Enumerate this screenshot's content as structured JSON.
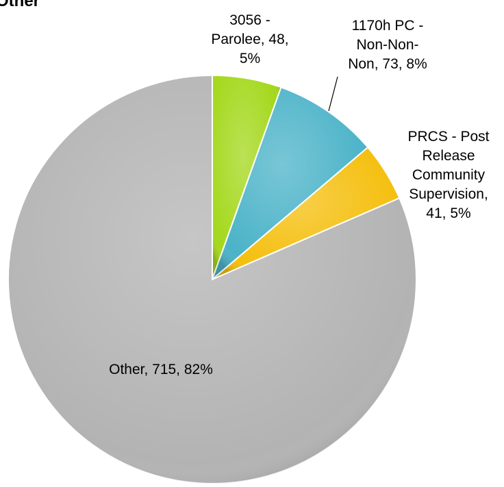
{
  "chart_data": {
    "type": "pie",
    "title": "Other",
    "categories": [
      "3056 - Parolee",
      "1170h PC - Non-Non-Non",
      "PRCS - Post Release Community Supervision",
      "Other"
    ],
    "values": [
      48,
      73,
      41,
      715
    ],
    "value_labels": [
      "3056 - Parolee, 48, 5%",
      "1170h PC - Non-Non-Non, 73, 8%",
      "PRCS - Post Release Community Supervision, 41, 5%",
      "Other, 715, 82%"
    ],
    "colors": [
      "#a4d81c",
      "#4bb3c8",
      "#f5bf0e",
      "#b3b3b3"
    ]
  }
}
